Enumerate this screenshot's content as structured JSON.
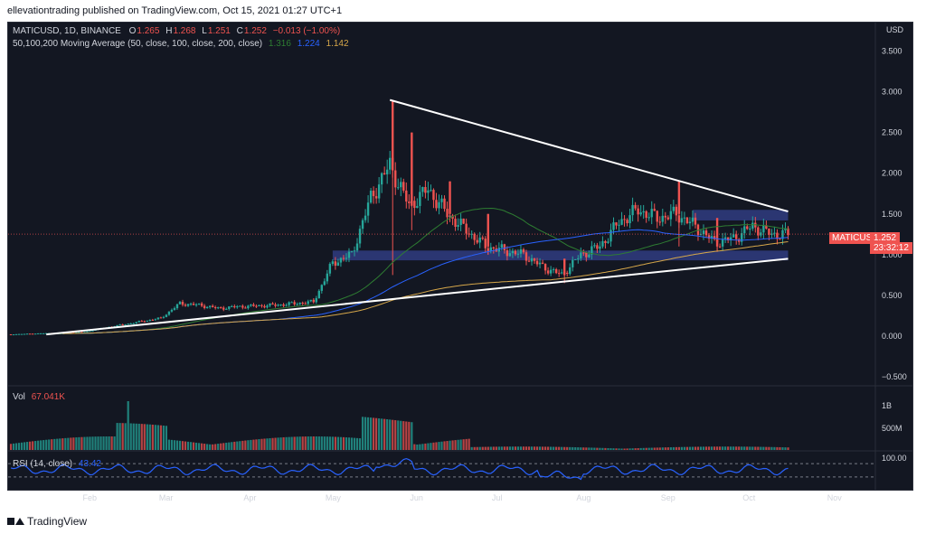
{
  "publisher_line": "ellevationtrading published on TradingView.com, Oct 15, 2021 01:27 UTC+1",
  "footer_brand": "TradingView",
  "colors": {
    "background": "#131722",
    "bull": "#26a69a",
    "bear": "#ef5350",
    "ma50": "#2e7d32",
    "ma100": "#2962ff",
    "ma200": "#d6a74a",
    "zone": "#3f51b5",
    "rsi": "#2962ff"
  },
  "legend": {
    "symbol": "MATICUSD, 1D, BINANCE",
    "open_label": "O",
    "open": "1.265",
    "high_label": "H",
    "high": "1.268",
    "low_label": "L",
    "low": "1.251",
    "close_label": "C",
    "close": "1.252",
    "change": "−0.013 (−1.00%)",
    "ma_title": "50,100,200 Moving Average (50, close, 100, close, 200, close)",
    "ma50_value": "1.316",
    "ma100_value": "1.224",
    "ma200_value": "1.142",
    "vol_label": "Vol",
    "vol_value": "67.041K",
    "rsi_label": "RSI (14, close)",
    "rsi_value": "43.42"
  },
  "price_tag": {
    "symbol": "MATICUSD",
    "value": "1.252",
    "countdown": "23:32:12"
  },
  "chart_data": {
    "type": "candlestick",
    "symbol": "MATICUSD",
    "interval": "1D",
    "exchange": "BINANCE",
    "currency": "USD",
    "price_axis_ticks": [
      "3.500",
      "3.000",
      "2.500",
      "2.000",
      "1.500",
      "1.000",
      "0.500",
      "0.000",
      "−0.500"
    ],
    "price_axis_values": [
      3.5,
      3.0,
      2.5,
      2.0,
      1.5,
      1.0,
      0.5,
      0.0,
      -0.5
    ],
    "ylim": [
      -0.6,
      3.85
    ],
    "volume_axis_ticks": [
      "1B",
      "500M"
    ],
    "rsi_axis_ticks": [
      "100.00"
    ],
    "x_tick_labels": [
      "Feb",
      "Mar",
      "Apr",
      "May",
      "Jun",
      "Jul",
      "Aug",
      "Sep",
      "Oct",
      "Nov"
    ],
    "x_tick_days": [
      31,
      59,
      90,
      120,
      151,
      181,
      212,
      243,
      273,
      304
    ],
    "ohlc_weekly_approx": [
      {
        "day": 1,
        "o": 0.018,
        "h": 0.022,
        "l": 0.016,
        "c": 0.02
      },
      {
        "day": 8,
        "o": 0.02,
        "h": 0.03,
        "l": 0.018,
        "c": 0.028
      },
      {
        "day": 15,
        "o": 0.028,
        "h": 0.04,
        "l": 0.026,
        "c": 0.035
      },
      {
        "day": 22,
        "o": 0.035,
        "h": 0.045,
        "l": 0.03,
        "c": 0.04
      },
      {
        "day": 29,
        "o": 0.04,
        "h": 0.06,
        "l": 0.035,
        "c": 0.05
      },
      {
        "day": 36,
        "o": 0.05,
        "h": 0.12,
        "l": 0.045,
        "c": 0.1
      },
      {
        "day": 43,
        "o": 0.1,
        "h": 0.16,
        "l": 0.09,
        "c": 0.14
      },
      {
        "day": 50,
        "o": 0.14,
        "h": 0.2,
        "l": 0.12,
        "c": 0.18
      },
      {
        "day": 57,
        "o": 0.18,
        "h": 0.26,
        "l": 0.17,
        "c": 0.22
      },
      {
        "day": 64,
        "o": 0.22,
        "h": 0.48,
        "l": 0.2,
        "c": 0.4
      },
      {
        "day": 71,
        "o": 0.4,
        "h": 0.44,
        "l": 0.33,
        "c": 0.38
      },
      {
        "day": 78,
        "o": 0.38,
        "h": 0.42,
        "l": 0.3,
        "c": 0.34
      },
      {
        "day": 85,
        "o": 0.34,
        "h": 0.4,
        "l": 0.32,
        "c": 0.36
      },
      {
        "day": 92,
        "o": 0.36,
        "h": 0.4,
        "l": 0.33,
        "c": 0.37
      },
      {
        "day": 99,
        "o": 0.37,
        "h": 0.42,
        "l": 0.34,
        "c": 0.38
      },
      {
        "day": 106,
        "o": 0.38,
        "h": 0.44,
        "l": 0.34,
        "c": 0.4
      },
      {
        "day": 113,
        "o": 0.4,
        "h": 0.44,
        "l": 0.35,
        "c": 0.42
      },
      {
        "day": 120,
        "o": 0.42,
        "h": 1.05,
        "l": 0.4,
        "c": 0.9
      },
      {
        "day": 127,
        "o": 0.9,
        "h": 1.2,
        "l": 0.8,
        "c": 1.0
      },
      {
        "day": 134,
        "o": 1.0,
        "h": 1.8,
        "l": 0.95,
        "c": 1.7
      },
      {
        "day": 141,
        "o": 1.7,
        "h": 2.9,
        "l": 0.75,
        "c": 2.1
      },
      {
        "day": 148,
        "o": 2.1,
        "h": 2.5,
        "l": 1.3,
        "c": 1.6
      },
      {
        "day": 155,
        "o": 1.6,
        "h": 2.0,
        "l": 1.4,
        "c": 1.8
      },
      {
        "day": 162,
        "o": 1.8,
        "h": 1.9,
        "l": 1.4,
        "c": 1.5
      },
      {
        "day": 169,
        "o": 1.5,
        "h": 1.6,
        "l": 1.2,
        "c": 1.3
      },
      {
        "day": 176,
        "o": 1.3,
        "h": 1.5,
        "l": 1.0,
        "c": 1.1
      },
      {
        "day": 183,
        "o": 1.1,
        "h": 1.2,
        "l": 0.95,
        "c": 1.05
      },
      {
        "day": 190,
        "o": 1.05,
        "h": 1.1,
        "l": 0.95,
        "c": 1.0
      },
      {
        "day": 197,
        "o": 1.0,
        "h": 1.05,
        "l": 0.75,
        "c": 0.85
      },
      {
        "day": 204,
        "o": 0.85,
        "h": 0.95,
        "l": 0.65,
        "c": 0.75
      },
      {
        "day": 211,
        "o": 0.75,
        "h": 1.05,
        "l": 0.7,
        "c": 1.0
      },
      {
        "day": 218,
        "o": 1.0,
        "h": 1.15,
        "l": 0.95,
        "c": 1.1
      },
      {
        "day": 225,
        "o": 1.1,
        "h": 1.45,
        "l": 1.05,
        "c": 1.4
      },
      {
        "day": 232,
        "o": 1.4,
        "h": 1.7,
        "l": 1.3,
        "c": 1.55
      },
      {
        "day": 239,
        "o": 1.55,
        "h": 1.75,
        "l": 1.35,
        "c": 1.45
      },
      {
        "day": 246,
        "o": 1.45,
        "h": 1.9,
        "l": 1.1,
        "c": 1.5
      },
      {
        "day": 253,
        "o": 1.5,
        "h": 1.55,
        "l": 1.3,
        "c": 1.35
      },
      {
        "day": 260,
        "o": 1.35,
        "h": 1.45,
        "l": 1.05,
        "c": 1.15
      },
      {
        "day": 267,
        "o": 1.15,
        "h": 1.3,
        "l": 1.05,
        "c": 1.2
      },
      {
        "day": 274,
        "o": 1.2,
        "h": 1.5,
        "l": 1.15,
        "c": 1.35
      },
      {
        "day": 281,
        "o": 1.35,
        "h": 1.45,
        "l": 1.2,
        "c": 1.25
      },
      {
        "day": 287,
        "o": 1.25,
        "h": 1.3,
        "l": 1.22,
        "c": 1.252
      }
    ],
    "moving_averages": [
      {
        "name": "MA 50",
        "period": 50,
        "last": 1.316
      },
      {
        "name": "MA 100",
        "period": 100,
        "last": 1.224
      },
      {
        "name": "MA 200",
        "period": 200,
        "last": 1.142
      }
    ],
    "trendlines": [
      {
        "type": "descending resistance",
        "from": {
          "day": 141,
          "price": 2.9
        },
        "to": {
          "day": 287,
          "price": 1.53
        }
      },
      {
        "type": "ascending support",
        "from": {
          "day": 15,
          "price": 0.02
        },
        "to": {
          "day": 287,
          "price": 0.95
        }
      }
    ],
    "zones": [
      {
        "day_from": 120,
        "day_to": 287,
        "price_low": 0.93,
        "price_high": 1.05
      },
      {
        "day_from": 252,
        "day_to": 287,
        "price_low": 1.42,
        "price_high": 1.55
      }
    ]
  }
}
